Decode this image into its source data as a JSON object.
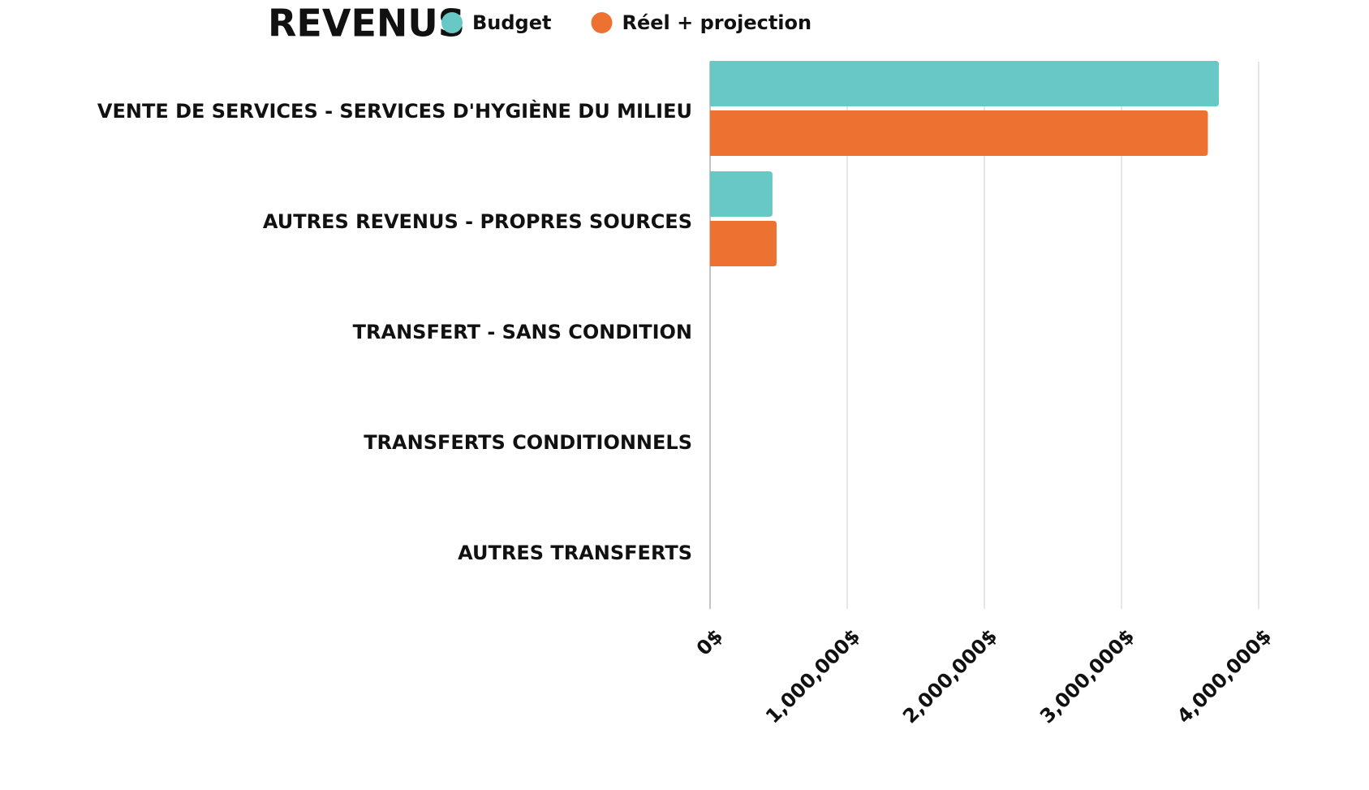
{
  "chart_data": {
    "type": "bar",
    "orientation": "horizontal",
    "title": "REVENUS",
    "categories": [
      "VENTE DE SERVICES - SERVICES D'HYGIÈNE DU MILIEU",
      "AUTRES REVENUS - PROPRES SOURCES",
      "TRANSFERT - SANS CONDITION",
      "TRANSFERTS CONDITIONNELS",
      "AUTRES TRANSFERTS"
    ],
    "series": [
      {
        "name": "Budget",
        "color": "#68c8c6",
        "values": [
          3710000,
          455000,
          0,
          0,
          0
        ]
      },
      {
        "name": "Réel + projection",
        "color": "#ed7232",
        "values": [
          3630000,
          485000,
          0,
          0,
          0
        ]
      }
    ],
    "xlim": [
      0,
      4000000
    ],
    "xticks": [
      {
        "value": 0,
        "label": "0$"
      },
      {
        "value": 1000000,
        "label": "1,000,000$"
      },
      {
        "value": 2000000,
        "label": "2,000,000$"
      },
      {
        "value": 3000000,
        "label": "3,000,000$"
      },
      {
        "value": 4000000,
        "label": "4,000,000$"
      }
    ],
    "grid": true,
    "legend": "top"
  }
}
